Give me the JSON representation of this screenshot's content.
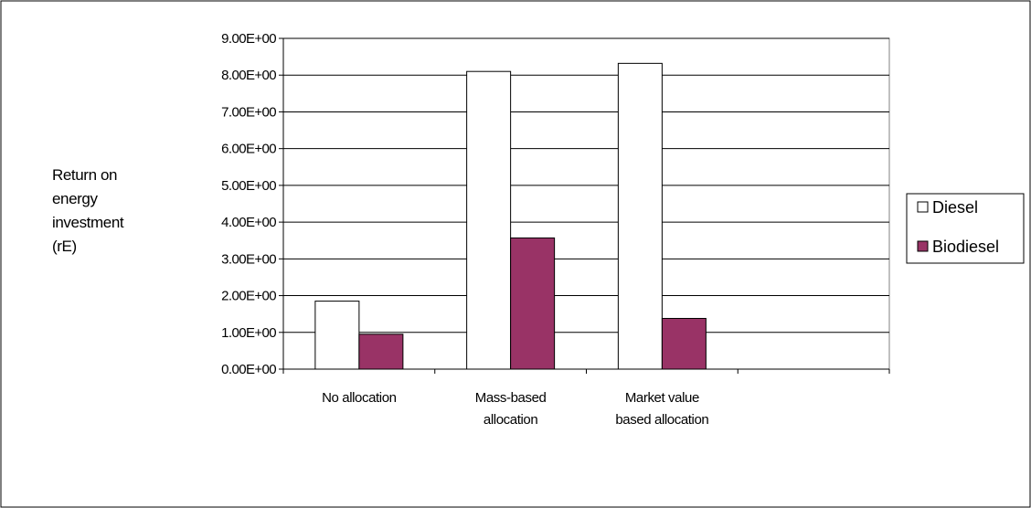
{
  "chart_data": {
    "type": "bar",
    "categories": [
      [
        "No allocation"
      ],
      [
        "Mass-based",
        "allocation"
      ],
      [
        "Market value",
        "based allocation"
      ],
      [
        ""
      ]
    ],
    "series": [
      {
        "name": "Diesel",
        "values": [
          1.85,
          8.1,
          8.32,
          null
        ],
        "color": "#ffffff"
      },
      {
        "name": "Biodiesel",
        "values": [
          0.95,
          3.57,
          1.38,
          null
        ],
        "color": "#993366"
      }
    ],
    "ylabel_lines": [
      "Return on",
      "energy",
      "investment",
      "(rE)"
    ],
    "xlabel": "",
    "ylim": [
      0,
      9
    ],
    "yticks": [
      0,
      1,
      2,
      3,
      4,
      5,
      6,
      7,
      8,
      9
    ],
    "ytick_labels": [
      "0.00E+00",
      "1.00E+00",
      "2.00E+00",
      "3.00E+00",
      "4.00E+00",
      "5.00E+00",
      "6.00E+00",
      "7.00E+00",
      "8.00E+00",
      "9.00E+00"
    ],
    "grid": true,
    "legend_position": "right"
  }
}
